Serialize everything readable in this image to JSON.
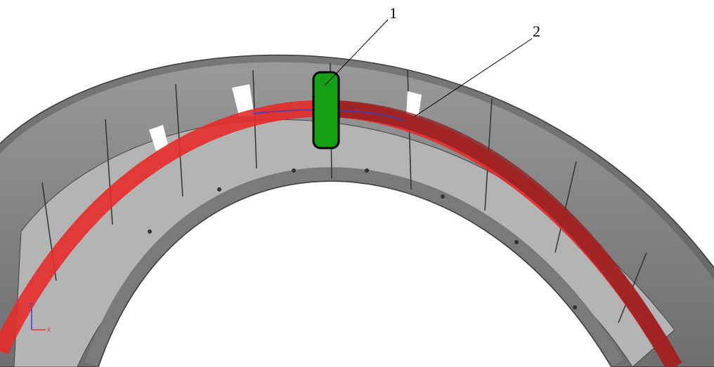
{
  "callouts": [
    {
      "label": "1"
    },
    {
      "label": "2"
    }
  ],
  "axis_triad": {
    "z": "Z",
    "x": "X"
  }
}
